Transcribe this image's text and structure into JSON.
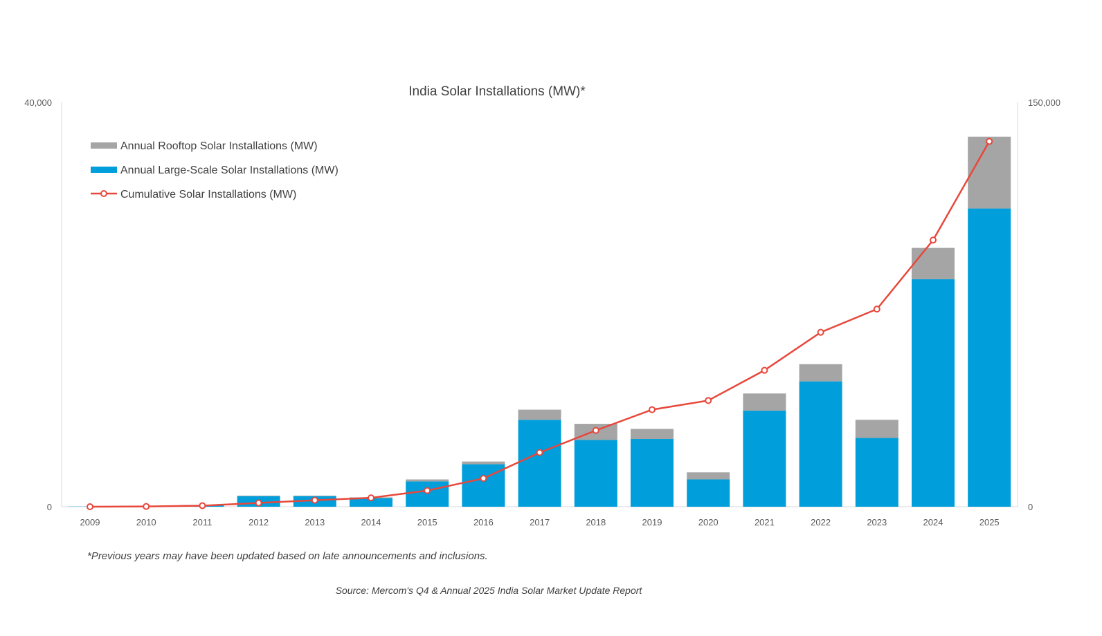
{
  "chart_data": {
    "type": "bar",
    "stacked": true,
    "title": "India Solar Installations (MW)*",
    "categories": [
      "2009",
      "2010",
      "2011",
      "2012",
      "2013",
      "2014",
      "2015",
      "2016",
      "2017",
      "2018",
      "2019",
      "2020",
      "2021",
      "2022",
      "2023",
      "2024",
      "2025"
    ],
    "series": [
      {
        "name": "Annual Large-Scale Solar Installations (MW)",
        "type": "bar",
        "axis": "left",
        "color": "#009FDB",
        "values": [
          20,
          60,
          150,
          1050,
          1050,
          850,
          2500,
          4200,
          8600,
          6600,
          6700,
          2700,
          9500,
          12400,
          6800,
          22500,
          29500
        ]
      },
      {
        "name": "Annual Rooftop Solar Installations (MW)",
        "type": "bar",
        "axis": "left",
        "color": "#A5A5A5",
        "values": [
          0,
          10,
          30,
          50,
          50,
          80,
          200,
          270,
          1000,
          1600,
          1000,
          700,
          1700,
          1700,
          1800,
          3100,
          7100
        ]
      },
      {
        "name": "Cumulative Solar Installations (MW)",
        "type": "line",
        "axis": "right",
        "color": "#E8473B",
        "values": [
          0,
          100,
          400,
          1400,
          2400,
          3300,
          6000,
          10500,
          20100,
          28300,
          36000,
          39400,
          50600,
          64700,
          73300,
          98900,
          135500
        ]
      }
    ],
    "y_left": {
      "range": [
        0,
        40000
      ],
      "ticks": [
        "0",
        "40,000"
      ]
    },
    "y_right": {
      "range": [
        0,
        150000
      ],
      "ticks": [
        "0",
        "150,000"
      ]
    },
    "grid": false,
    "legend_position": "top-left",
    "footnote": "*Previous years may have been updated based on late announcements and inclusions.",
    "source": "Source: Mercom's Q4 & Annual 2025 India Solar Market Update Report"
  }
}
